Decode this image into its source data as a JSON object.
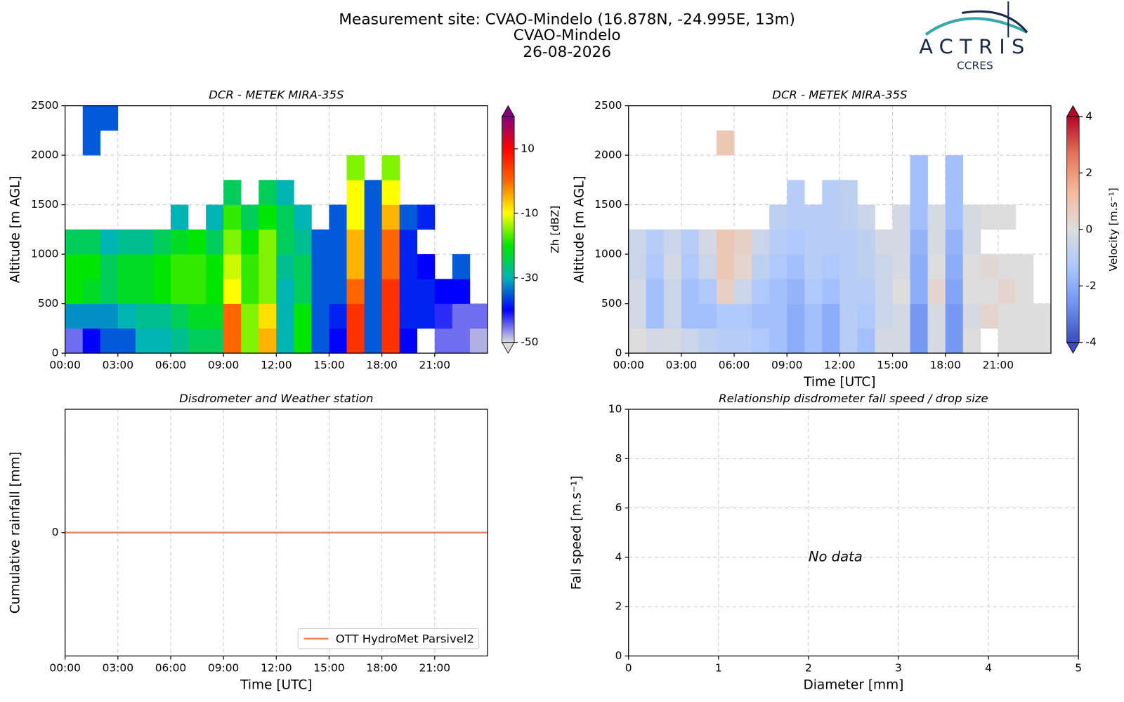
{
  "title": [
    "Measurement site: CVAO-Mindelo (16.878N, -24.995E, 13m)",
    "CVAO-Mindelo",
    "26-08-2026"
  ],
  "logo": {
    "name": "ACTRIS",
    "subtitle": "CCRES"
  },
  "chart_data": [
    {
      "type": "heatmap",
      "title": "DCR - METEK MIRA-35S",
      "ylabel": "Altitude [m AGL]",
      "xlim": [
        0,
        24
      ],
      "xticks": [
        {
          "value": 0,
          "label": "00:00"
        },
        {
          "value": 3,
          "label": "03:00"
        },
        {
          "value": 6,
          "label": "06:00"
        },
        {
          "value": 9,
          "label": "09:00"
        },
        {
          "value": 12,
          "label": "12:00"
        },
        {
          "value": 15,
          "label": "15:00"
        },
        {
          "value": 18,
          "label": "18:00"
        },
        {
          "value": 21,
          "label": "21:00"
        }
      ],
      "ylim": [
        0,
        2500
      ],
      "yticks": [
        0,
        500,
        1000,
        1500,
        2000,
        2500
      ],
      "grid": true,
      "x": [
        0,
        1,
        2,
        3,
        4,
        5,
        6,
        7,
        8,
        9,
        10,
        11,
        12,
        13,
        14,
        15,
        16,
        17,
        18,
        19,
        20,
        21,
        22,
        23,
        24
      ],
      "y": [
        0,
        250,
        500,
        750,
        1000,
        1250,
        1500,
        1750,
        2000,
        2250,
        2500
      ],
      "values": [
        [
          -45,
          -32,
          -20,
          -20,
          -25,
          null,
          null,
          null,
          null,
          null
        ],
        [
          -40,
          -32,
          -22,
          -20,
          -25,
          null,
          null,
          null,
          -35,
          -35
        ],
        [
          -35,
          -32,
          -25,
          -25,
          -30,
          null,
          null,
          null,
          null,
          -35
        ],
        [
          -35,
          -30,
          -22,
          -22,
          -28,
          null,
          null,
          null,
          null,
          null
        ],
        [
          -30,
          -28,
          -22,
          -22,
          -28,
          null,
          null,
          null,
          null,
          null
        ],
        [
          -30,
          -28,
          -20,
          -20,
          -25,
          null,
          null,
          null,
          null,
          null
        ],
        [
          -28,
          -25,
          -18,
          -18,
          -22,
          -30,
          null,
          null,
          null,
          null
        ],
        [
          -25,
          -22,
          -18,
          -18,
          -20,
          null,
          null,
          null,
          null,
          null
        ],
        [
          -25,
          -22,
          -20,
          -20,
          -25,
          -30,
          null,
          null,
          null,
          null
        ],
        [
          0,
          0,
          -10,
          -12,
          -15,
          -18,
          -25,
          null,
          null,
          null
        ],
        [
          -15,
          -15,
          -18,
          -18,
          -20,
          -25,
          null,
          null,
          null,
          null
        ],
        [
          -5,
          -8,
          -15,
          -15,
          -15,
          -20,
          -25,
          null,
          null,
          null
        ],
        [
          -30,
          -30,
          -30,
          -28,
          -25,
          -25,
          -30,
          null,
          null,
          null
        ],
        [
          -20,
          -20,
          -25,
          -25,
          -28,
          -30,
          null,
          null,
          null,
          null
        ],
        [
          -35,
          -35,
          -35,
          -35,
          -35,
          null,
          null,
          null,
          null,
          null
        ],
        [
          -40,
          -38,
          -35,
          -35,
          -35,
          -35,
          null,
          null,
          null,
          null
        ],
        [
          5,
          5,
          0,
          -5,
          -5,
          -10,
          -10,
          -15,
          null,
          null
        ],
        [
          -35,
          -35,
          -35,
          -35,
          -35,
          -35,
          -35,
          null,
          null,
          null
        ],
        [
          5,
          5,
          5,
          0,
          0,
          -5,
          -10,
          -15,
          null,
          null
        ],
        [
          -40,
          -38,
          -38,
          -38,
          -38,
          -35,
          null,
          null,
          null,
          null
        ],
        [
          null,
          -38,
          -38,
          -40,
          null,
          -38,
          null,
          null,
          null,
          null
        ],
        [
          -45,
          -42,
          -40,
          null,
          null,
          null,
          null,
          null,
          null,
          null
        ],
        [
          -45,
          -45,
          -40,
          -35,
          null,
          null,
          null,
          null,
          null,
          null
        ],
        [
          -48,
          -45,
          null,
          null,
          null,
          null,
          null,
          null,
          null,
          null
        ]
      ],
      "colorbar": {
        "label": "Zh [dBZ]",
        "clim": [
          -50,
          20
        ],
        "ticks": [
          -50,
          -30,
          -10,
          10
        ],
        "colors": [
          "#dcdcdc",
          "#0000ff",
          "#00b4b4",
          "#00e600",
          "#ffff00",
          "#ff6600",
          "#ff0000",
          "#800080"
        ]
      }
    },
    {
      "type": "heatmap",
      "title": "DCR - METEK MIRA-35S",
      "ylabel": "Altitude [m AGL]",
      "xlabel": "Time [UTC]",
      "xlim": [
        0,
        24
      ],
      "xticks": [
        {
          "value": 0,
          "label": "00:00"
        },
        {
          "value": 3,
          "label": "03:00"
        },
        {
          "value": 6,
          "label": "06:00"
        },
        {
          "value": 9,
          "label": "09:00"
        },
        {
          "value": 12,
          "label": "12:00"
        },
        {
          "value": 15,
          "label": "15:00"
        },
        {
          "value": 18,
          "label": "18:00"
        },
        {
          "value": 21,
          "label": "21:00"
        }
      ],
      "ylim": [
        0,
        2500
      ],
      "yticks": [
        0,
        500,
        1000,
        1500,
        2000,
        2500
      ],
      "grid": true,
      "x": [
        0,
        1,
        2,
        3,
        4,
        5,
        6,
        7,
        8,
        9,
        10,
        11,
        12,
        13,
        14,
        15,
        16,
        17,
        18,
        19,
        20,
        21,
        22,
        23,
        24
      ],
      "y": [
        0,
        250,
        500,
        750,
        1000,
        1250,
        1500,
        1750,
        2000,
        2250,
        2500
      ],
      "values": [
        [
          0,
          -0.3,
          -0.3,
          -0.5,
          -0.5,
          null,
          null,
          null,
          null,
          null
        ],
        [
          -0.3,
          -1.5,
          -1.5,
          -1.2,
          -1,
          null,
          null,
          null,
          null,
          null
        ],
        [
          -0.2,
          -0.5,
          -0.5,
          -0.3,
          -0.5,
          null,
          null,
          null,
          null,
          null
        ],
        [
          -0.5,
          -1.5,
          -1.5,
          -1.2,
          -1,
          null,
          null,
          null,
          null,
          null
        ],
        [
          -0.8,
          -1.5,
          -1.2,
          -0.5,
          -0.3,
          null,
          null,
          null,
          null,
          null
        ],
        [
          -1,
          -1.2,
          0.5,
          0.8,
          0.8,
          null,
          null,
          null,
          0.8,
          null
        ],
        [
          -1,
          -1.2,
          -0.5,
          0.3,
          0.5,
          null,
          null,
          null,
          null,
          null
        ],
        [
          -1.2,
          -1.5,
          -1.2,
          -0.8,
          -0.5,
          null,
          null,
          null,
          null,
          null
        ],
        [
          -1.5,
          -1.5,
          -1.5,
          -1.2,
          -1,
          -0.8,
          null,
          null,
          null,
          null
        ],
        [
          -2,
          -2,
          -1.8,
          -1.5,
          -1.2,
          -1,
          -1,
          null,
          null,
          null
        ],
        [
          -1.5,
          -1.5,
          -1.2,
          -1,
          -1,
          -1,
          null,
          null,
          null,
          null
        ],
        [
          -2,
          -2,
          -1.5,
          -1.2,
          -1,
          -1,
          -1,
          null,
          null,
          null
        ],
        [
          -1,
          -1,
          -1,
          -1,
          -1,
          -0.8,
          -0.8,
          null,
          null,
          null
        ],
        [
          -1.5,
          -1.2,
          -1,
          -0.8,
          -0.8,
          -0.5,
          null,
          null,
          null,
          null
        ],
        [
          -0.3,
          -0.5,
          -0.5,
          -0.5,
          -0.3,
          null,
          null,
          null,
          null,
          null
        ],
        [
          -0.3,
          -0.3,
          0,
          -0.2,
          -0.3,
          -0.3,
          null,
          null,
          null,
          null
        ],
        [
          -2.5,
          -2.5,
          -2,
          -2,
          -1.8,
          -1.5,
          -1.5,
          -1.5,
          null,
          null
        ],
        [
          -0.2,
          -0.2,
          0.3,
          0,
          -0.2,
          -0.2,
          null,
          null,
          null,
          null
        ],
        [
          -2.5,
          -2.5,
          -2.2,
          -2,
          -1.8,
          -1.5,
          -1.5,
          -1.5,
          null,
          null
        ],
        [
          0,
          -0.2,
          0,
          0,
          -0.2,
          -0.2,
          null,
          null,
          null,
          null
        ],
        [
          null,
          0.3,
          0,
          0.2,
          null,
          0,
          null,
          null,
          null,
          null
        ],
        [
          0,
          0,
          0.3,
          0,
          null,
          0,
          null,
          null,
          null,
          null
        ],
        [
          0,
          0,
          0,
          0,
          null,
          null,
          null,
          null,
          null,
          null
        ],
        [
          0,
          0,
          null,
          null,
          null,
          null,
          null,
          null,
          null,
          null
        ]
      ],
      "colorbar": {
        "label": "Velocity [m.s⁻¹]",
        "clim": [
          -4,
          4
        ],
        "ticks": [
          -4,
          -2,
          0,
          2,
          4
        ],
        "colors": [
          "#3b4cc0",
          "#6f92f3",
          "#aac7fd",
          "#dddddd",
          "#f7b89c",
          "#e7745b",
          "#b40426"
        ]
      }
    },
    {
      "type": "line",
      "title": "Disdrometer and Weather station",
      "ylabel": "Cumulative rainfall [mm]",
      "xlabel": "Time [UTC]",
      "xlim": [
        0,
        24
      ],
      "xticks": [
        {
          "value": 0,
          "label": "00:00"
        },
        {
          "value": 3,
          "label": "03:00"
        },
        {
          "value": 6,
          "label": "06:00"
        },
        {
          "value": 9,
          "label": "09:00"
        },
        {
          "value": 12,
          "label": "12:00"
        },
        {
          "value": 15,
          "label": "15:00"
        },
        {
          "value": 18,
          "label": "18:00"
        },
        {
          "value": 21,
          "label": "21:00"
        }
      ],
      "ylim": [
        -1,
        1
      ],
      "yticks": [
        0
      ],
      "grid": true,
      "legend": "lower right",
      "x": [
        0,
        24
      ],
      "series": [
        {
          "name": "OTT HydroMet Parsivel2",
          "color": "#ee8866",
          "values": [
            0,
            0
          ]
        }
      ]
    },
    {
      "type": "scatter",
      "title": "Relationship disdrometer fall speed / drop size",
      "ylabel": "Fall speed [m.s⁻¹]",
      "xlabel": "Diameter [mm]",
      "xlim": [
        0,
        5
      ],
      "xticks": [
        0,
        1,
        2,
        3,
        4,
        5
      ],
      "ylim": [
        0,
        10
      ],
      "yticks": [
        0,
        2,
        4,
        6,
        8,
        10
      ],
      "grid": true,
      "annotation": {
        "text": "No data",
        "x": 2,
        "y": 4
      }
    }
  ]
}
